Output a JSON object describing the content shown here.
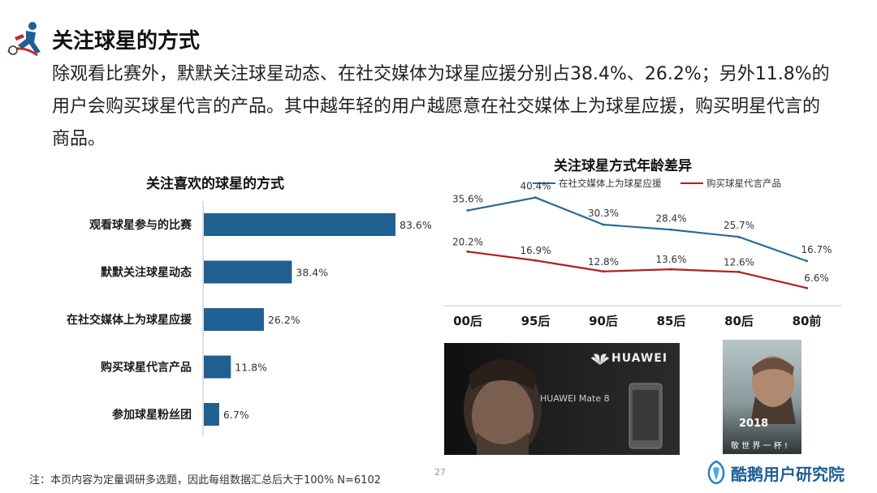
{
  "header": {
    "title": "关注球星的方式",
    "lead": "除观看比赛外，默默关注球星动态、在社交媒体为球星应援分别占38.4%、26.2%；另外11.8%的用户会购买球星代言的产品。其中越年轻的用户越愿意在社交媒体上为球星应援，购买明星代言的商品。"
  },
  "chart_data": [
    {
      "type": "bar",
      "orientation": "horizontal",
      "title": "关注喜欢的球星的方式",
      "categories": [
        "观看球星参与的比赛",
        "默默关注球星动态",
        "在社交媒体上为球星应援",
        "购买球星代言产品",
        "参加球星粉丝团"
      ],
      "values": [
        83.6,
        38.4,
        26.2,
        11.8,
        6.7
      ],
      "value_labels": [
        "83.6%",
        "38.4%",
        "26.2%",
        "11.8%",
        "6.7%"
      ],
      "unit": "%",
      "color": "#1f5f92"
    },
    {
      "type": "line",
      "title": "关注球星方式年龄差异",
      "categories": [
        "00后",
        "95后",
        "90后",
        "85后",
        "80后",
        "80前"
      ],
      "legend_position": "top",
      "series": [
        {
          "name": "在社交媒体上为球星应援",
          "values": [
            35.6,
            40.4,
            30.3,
            28.4,
            25.7,
            16.7
          ],
          "labels": [
            "35.6%",
            "40.4%",
            "30.3%",
            "28.4%",
            "25.7%",
            "16.7%"
          ],
          "color": "#2a6a99"
        },
        {
          "name": "购买球星代言产品",
          "values": [
            20.2,
            16.9,
            12.8,
            13.6,
            12.6,
            6.6
          ],
          "labels": [
            "20.2%",
            "16.9%",
            "12.8%",
            "13.6%",
            "12.6%",
            "6.6%"
          ],
          "color": "#b01e23"
        }
      ],
      "ylim": [
        0,
        45
      ]
    }
  ],
  "ads": {
    "huawei_brand": "HUAWEI",
    "huawei_model": "HUAWEI Mate 8",
    "poster_year": "2018",
    "poster_slogan": "敬 世 界 一 杯 !"
  },
  "footer": {
    "note": "注：本页内容为定量调研多选题，因此每组数据汇总后大于100%   N=6102",
    "page": "27",
    "brand": "酷鹅用户研究院"
  }
}
